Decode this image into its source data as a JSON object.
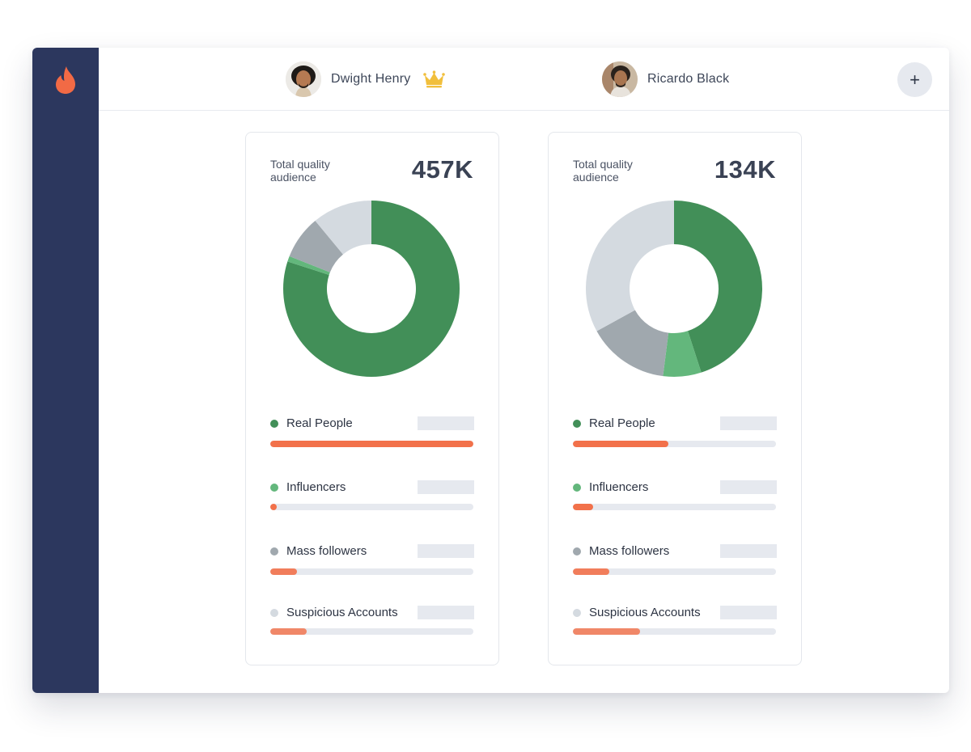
{
  "colors": {
    "sidebar": "#2c375e",
    "brand": "#f26a45",
    "real_people": "#428f58",
    "influencers": "#63b77c",
    "mass_followers": "#a0a8ae",
    "suspicious": "#d4dae0",
    "progress_fill": "#f2714a",
    "track": "#e6e9ef"
  },
  "sidebar": {
    "logo_icon": "flame-icon"
  },
  "header": {
    "add_button_label": "+",
    "users": [
      {
        "name": "Dwight Henry",
        "badge_icon": "crown-icon"
      },
      {
        "name": "Ricardo Black"
      }
    ]
  },
  "cards": [
    {
      "label": "Total quality audience",
      "total": "457K",
      "chart_data": {
        "type": "pie",
        "categories": [
          "Real People",
          "Influencers",
          "Mass followers",
          "Suspicious Accounts"
        ],
        "values": [
          80,
          1,
          8,
          11
        ]
      },
      "metrics": [
        {
          "label": "Real People",
          "progress": 1.0
        },
        {
          "label": "Influencers",
          "progress": 0.03
        },
        {
          "label": "Mass followers",
          "progress": 0.13
        },
        {
          "label": "Suspicious Accounts",
          "progress": 0.18
        }
      ]
    },
    {
      "label": "Total quality audience",
      "total": "134K",
      "chart_data": {
        "type": "pie",
        "categories": [
          "Real People",
          "Influencers",
          "Mass followers",
          "Suspicious Accounts"
        ],
        "values": [
          45,
          7,
          15,
          33
        ]
      },
      "metrics": [
        {
          "label": "Real People",
          "progress": 0.47
        },
        {
          "label": "Influencers",
          "progress": 0.1
        },
        {
          "label": "Mass followers",
          "progress": 0.18
        },
        {
          "label": "Suspicious Accounts",
          "progress": 0.33
        }
      ]
    }
  ]
}
